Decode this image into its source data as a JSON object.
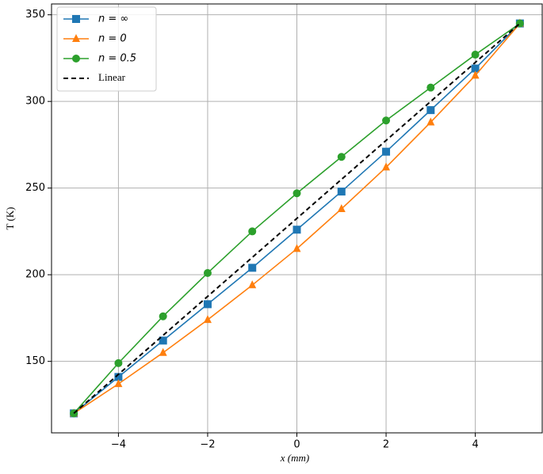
{
  "chart_data": {
    "type": "line",
    "x_label": "x (mm)",
    "y_label": "T (K)",
    "x": [
      -5,
      -4,
      -3,
      -2,
      -1,
      0,
      1,
      2,
      3,
      4,
      5
    ],
    "series": [
      {
        "name": "n = ∞",
        "color": "#1f77b4",
        "marker": "square",
        "values": [
          120,
          141,
          162,
          183,
          204,
          226,
          248,
          271,
          295,
          319,
          345
        ]
      },
      {
        "name": "n = 0",
        "color": "#ff7f0e",
        "marker": "triangle",
        "values": [
          120,
          137,
          155,
          174,
          194,
          215,
          238,
          262,
          288,
          315,
          345
        ]
      },
      {
        "name": "n = 0.5",
        "color": "#2ca02c",
        "marker": "circle",
        "values": [
          120,
          149,
          176,
          201,
          225,
          247,
          268,
          289,
          308,
          327,
          345
        ]
      },
      {
        "name": "Linear",
        "color": "#000000",
        "dashed": true,
        "x": [
          -5,
          5
        ],
        "values": [
          120,
          345
        ]
      }
    ],
    "xlim": [
      -5.5,
      5.5
    ],
    "ylim": [
      108.75,
      356.25
    ],
    "xticks": [
      {
        "value": -4,
        "label": "−4"
      },
      {
        "value": -2,
        "label": "−2"
      },
      0,
      2,
      4
    ],
    "yticks": [
      150,
      200,
      250,
      300,
      350
    ],
    "grid": true,
    "legend": "upper left"
  }
}
